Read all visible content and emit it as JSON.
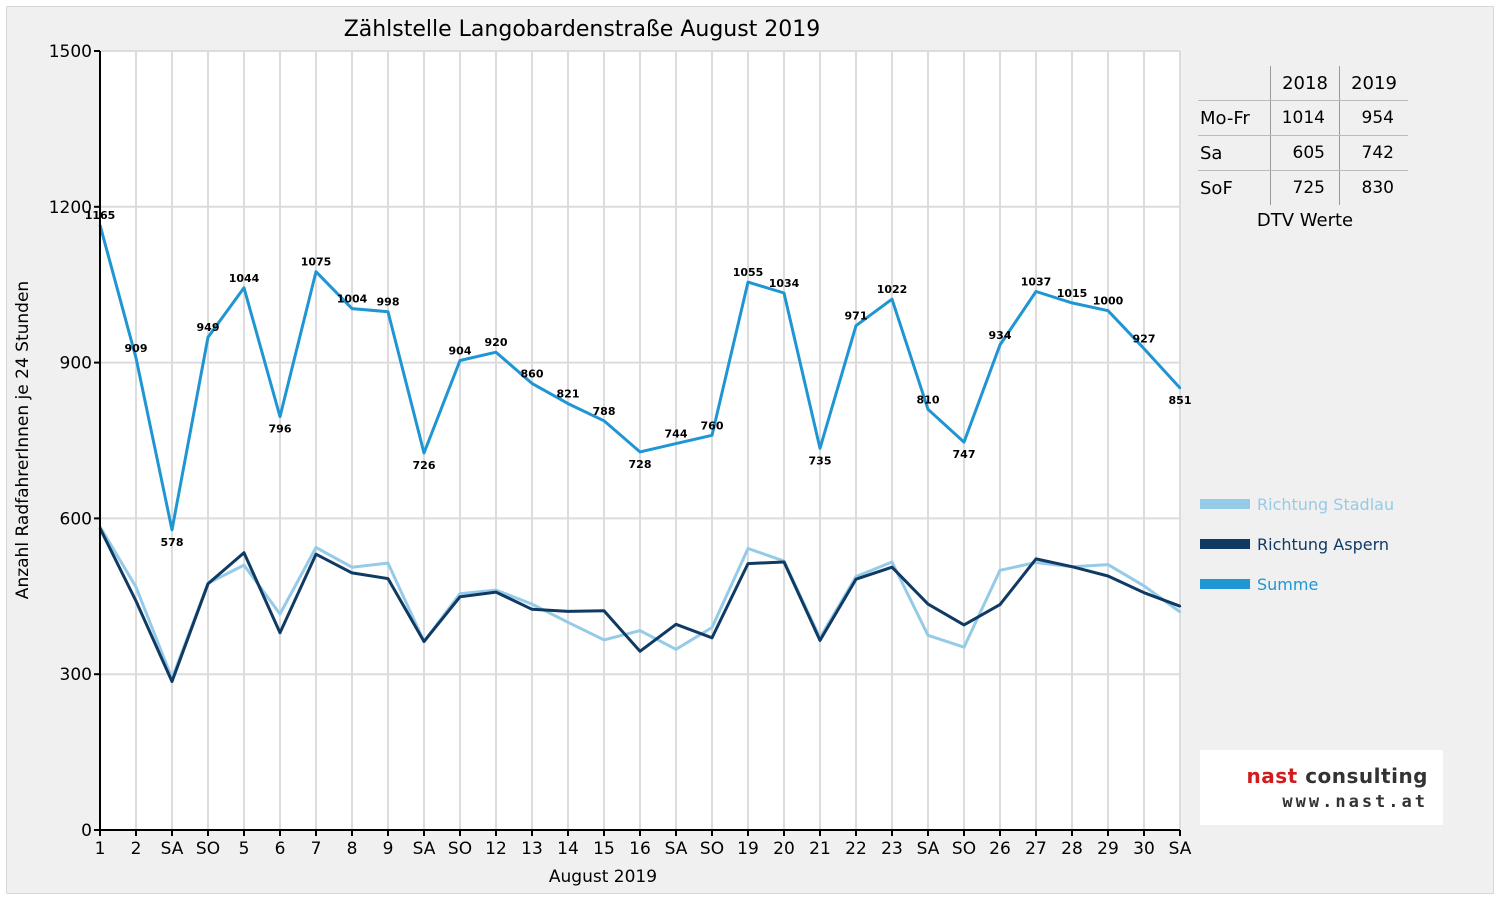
{
  "chart_data": {
    "type": "line",
    "title": "Zählstelle Langobardenstraße August 2019",
    "xlabel": "August 2019",
    "ylabel": "Anzahl RadfahrerInnen je 24 Stunden",
    "ylim": [
      0,
      1500
    ],
    "yticks": [
      0,
      300,
      600,
      900,
      1200,
      1500
    ],
    "grid": true,
    "legend_position": "right",
    "categories": [
      "1",
      "2",
      "SA",
      "SO",
      "5",
      "6",
      "7",
      "8",
      "9",
      "SA",
      "SO",
      "12",
      "13",
      "14",
      "15",
      "16",
      "SA",
      "SO",
      "19",
      "20",
      "21",
      "22",
      "23",
      "SA",
      "SO",
      "26",
      "27",
      "28",
      "29",
      "30",
      "SA"
    ],
    "highlighted_categories": [
      "SO",
      "15"
    ],
    "series": [
      {
        "name": "Richtung Stadlau",
        "color": "#96cbe8",
        "values": [
          584,
          468,
          292,
          475,
          510,
          416,
          544,
          506,
          514,
          363,
          455,
          462,
          435,
          400,
          366,
          384,
          348,
          390,
          542,
          518,
          370,
          488,
          516,
          375,
          352,
          500,
          515,
          507,
          511,
          470,
          420
        ]
      },
      {
        "name": "Richtung Aspern",
        "color": "#0f3a64",
        "values": [
          581,
          441,
          286,
          474,
          534,
          380,
          531,
          495,
          484,
          363,
          449,
          458,
          425,
          421,
          422,
          344,
          396,
          370,
          513,
          516,
          365,
          483,
          506,
          435,
          395,
          434,
          522,
          507,
          489,
          457,
          431
        ]
      },
      {
        "name": "Summe",
        "color": "#1f96d3",
        "values": [
          1165,
          909,
          578,
          949,
          1044,
          796,
          1075,
          1004,
          998,
          726,
          904,
          920,
          860,
          821,
          788,
          728,
          744,
          760,
          1055,
          1034,
          735,
          971,
          1022,
          810,
          747,
          934,
          1037,
          1015,
          1000,
          927,
          851
        ]
      }
    ]
  },
  "dtv_table": {
    "header": [
      "",
      "2018",
      "2019"
    ],
    "rows": [
      {
        "label": "Mo-Fr",
        "y2018": "1014",
        "y2019": "954"
      },
      {
        "label": "Sa",
        "y2018": "605",
        "y2019": "742"
      },
      {
        "label": "SoF",
        "y2018": "725",
        "y2019": "830"
      }
    ],
    "caption": "DTV Werte"
  },
  "logo": {
    "name_part1": "nast",
    "name_part2": " consulting",
    "url": "www.nast.at",
    "color_part1": "#d01c1c",
    "color_part2": "#333333"
  },
  "colors": {
    "highlight_text": "#e00000",
    "grid": "#dcdcdc",
    "background": "#f0f0f0"
  }
}
